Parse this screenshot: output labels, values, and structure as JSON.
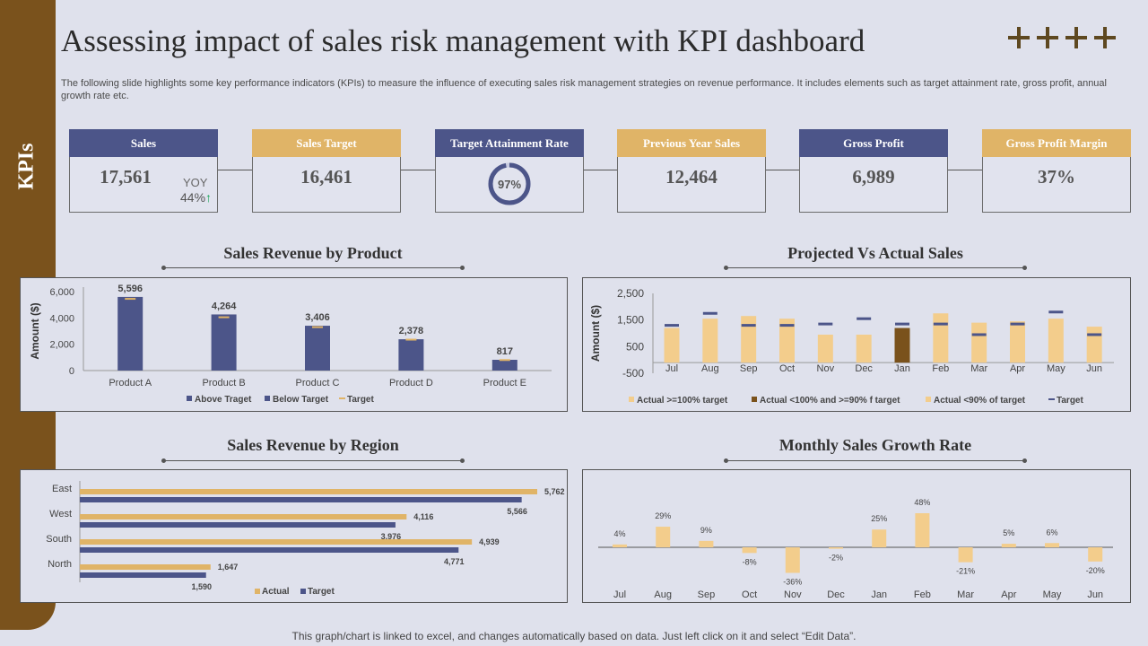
{
  "sidebar": {
    "label": "KPIs"
  },
  "header": {
    "title": "Assessing impact of sales risk management with KPI dashboard",
    "subtitle": "The following slide highlights some key performance indicators (KPIs) to measure the influence of executing sales risk management strategies on revenue performance. It includes elements such as target attainment rate, gross profit, annual growth rate etc."
  },
  "kpis": [
    {
      "label": "Sales",
      "value": "17,561",
      "yoy_label": "YOY",
      "yoy_value": "44%",
      "color": "navy"
    },
    {
      "label": "Sales Target",
      "value": "16,461",
      "color": "gold"
    },
    {
      "label": "Target Attainment Rate",
      "value": "97%",
      "ring_fraction": 0.97,
      "color": "navy"
    },
    {
      "label": "Previous Year Sales",
      "value": "12,464",
      "color": "gold"
    },
    {
      "label": "Gross Profit",
      "value": "6,989",
      "color": "navy"
    },
    {
      "label": "Gross Profit Margin",
      "value": "37%",
      "color": "gold"
    }
  ],
  "sections": {
    "product": "Sales Revenue by Product",
    "projected": "Projected Vs Actual Sales",
    "region": "Sales Revenue by Region",
    "growth": "Monthly Sales Growth Rate"
  },
  "colors": {
    "navy": "#4c5589",
    "gold": "#e0b467",
    "brown": "#7a521c",
    "tan": "#f3cd8c"
  },
  "footer": "This graph/chart is linked to excel,  and changes automatically based on data. Just left click on it and select “Edit Data”.",
  "chart_data": [
    {
      "type": "bar",
      "title": "Sales Revenue by Product",
      "ylabel": "Amount ($)",
      "categories": [
        "Product A",
        "Product B",
        "Product C",
        "Product D",
        "Product E"
      ],
      "values": [
        5596,
        4264,
        3406,
        2378,
        817
      ],
      "value_labels": [
        "5,596",
        "4,264",
        "3,406",
        "2,378",
        "817"
      ],
      "target": [
        5450,
        4050,
        3300,
        2350,
        800
      ],
      "ylim": [
        0,
        6000
      ],
      "yticks": [
        0,
        2000,
        4000,
        6000
      ],
      "ytick_labels": [
        "0",
        "2,000",
        "4,000",
        "6,000"
      ],
      "legend": [
        "Above Traget",
        "Below Target",
        "Target"
      ]
    },
    {
      "type": "bar",
      "title": "Projected Vs Actual Sales",
      "ylabel": "Amount ($)",
      "categories": [
        "Jul",
        "Aug",
        "Sep",
        "Oct",
        "Nov",
        "Dec",
        "Jan",
        "Feb",
        "Mar",
        "Apr",
        "May",
        "Jun"
      ],
      "actual": [
        1200,
        1550,
        1650,
        1550,
        950,
        950,
        1200,
        1750,
        1400,
        1450,
        1550,
        1250
      ],
      "target": [
        1300,
        1750,
        1300,
        1300,
        1350,
        1550,
        1350,
        1350,
        950,
        1350,
        1800,
        950
      ],
      "category_flag": [
        "a",
        "a",
        "a",
        "a",
        "a",
        "a",
        "b",
        "a",
        "a",
        "a",
        "a",
        "a"
      ],
      "ylim": [
        -500,
        2500
      ],
      "yticks": [
        -500,
        500,
        1500,
        2500
      ],
      "ytick_labels": [
        "-500",
        "500",
        "1,500",
        "2,500"
      ],
      "legend": [
        "Actual >=100% target",
        "Actual <100% and >=90% f target",
        "Actual <90% of target",
        "Target"
      ]
    },
    {
      "type": "bar",
      "orientation": "horizontal",
      "title": "Sales Revenue by Region",
      "categories": [
        "East",
        "West",
        "South",
        "North"
      ],
      "series": [
        {
          "name": "Actual",
          "values": [
            5762,
            4116,
            4939,
            1647
          ],
          "labels": [
            "5,762",
            "4,116",
            "4,939",
            "1,647"
          ]
        },
        {
          "name": "Target",
          "values": [
            5566,
            3976,
            4771,
            1590
          ],
          "labels": [
            "5,566",
            "3,976",
            "4,771",
            "1,590"
          ]
        }
      ],
      "xlim": [
        0,
        6500
      ]
    },
    {
      "type": "bar",
      "title": "Monthly Sales Growth Rate",
      "categories": [
        "Jul",
        "Aug",
        "Sep",
        "Oct",
        "Nov",
        "Dec",
        "Jan",
        "Feb",
        "Mar",
        "Apr",
        "May",
        "Jun"
      ],
      "values": [
        4,
        29,
        9,
        -8,
        -36,
        -2,
        25,
        48,
        -21,
        5,
        6,
        -20
      ],
      "value_labels": [
        "4%",
        "29%",
        "9%",
        "-8%",
        "-36%",
        "-2%",
        "25%",
        "48%",
        "-21%",
        "5%",
        "6%",
        "-20%"
      ],
      "ylim": [
        -40,
        50
      ]
    }
  ]
}
